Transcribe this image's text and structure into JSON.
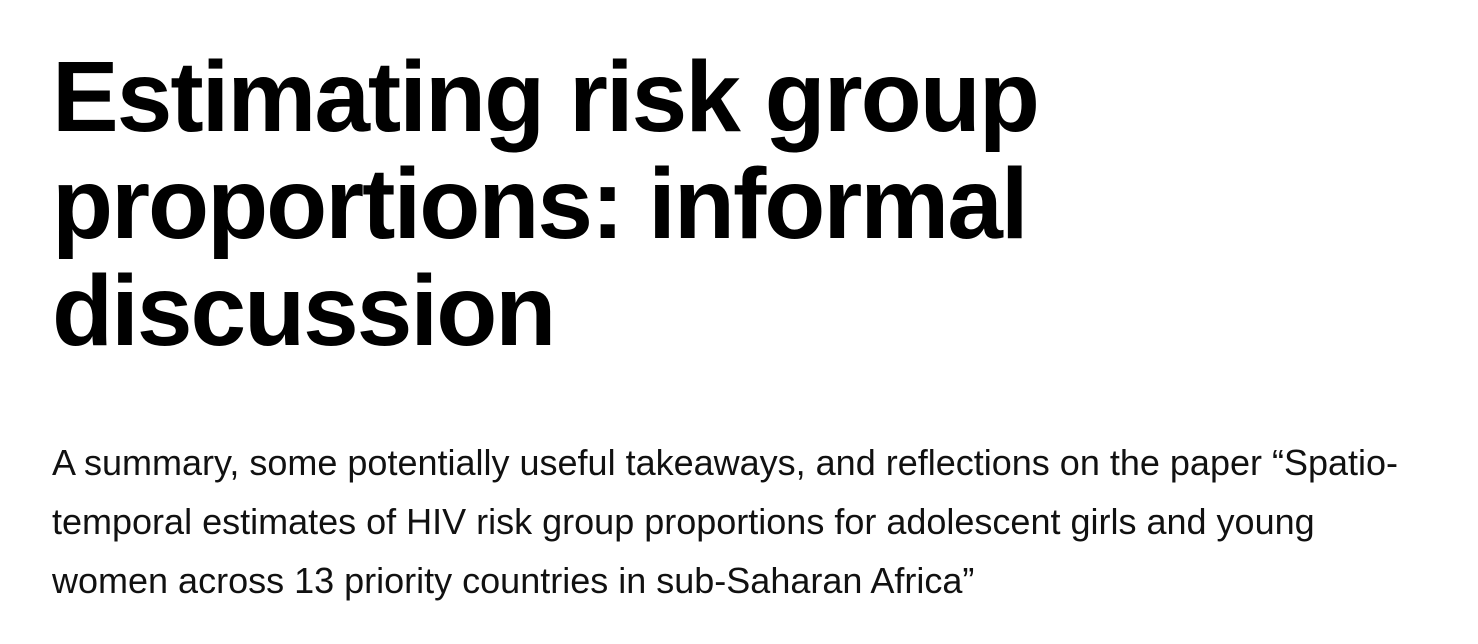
{
  "article": {
    "title": "Estimating risk group proportions: informal discussion",
    "subtitle": "A summary, some potentially useful takeaways, and reflections on the paper “Spatio-temporal estimates of HIV risk group proportions for adolescent girls and young women across 13 priority countries in sub-Saharan Africa”"
  }
}
